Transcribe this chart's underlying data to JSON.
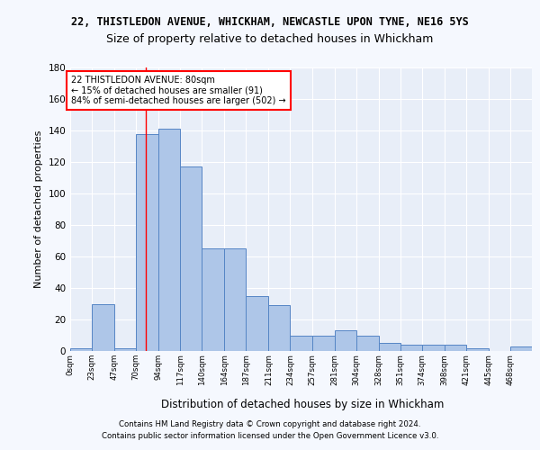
{
  "title_top": "22, THISTLEDON AVENUE, WHICKHAM, NEWCASTLE UPON TYNE, NE16 5YS",
  "title_main": "Size of property relative to detached houses in Whickham",
  "xlabel": "Distribution of detached houses by size in Whickham",
  "ylabel": "Number of detached properties",
  "bar_edges": [
    0,
    23,
    47,
    70,
    94,
    117,
    140,
    164,
    187,
    211,
    234,
    257,
    281,
    304,
    328,
    351,
    374,
    398,
    421,
    445,
    468
  ],
  "bar_heights": [
    2,
    30,
    2,
    138,
    141,
    117,
    65,
    65,
    35,
    29,
    10,
    10,
    13,
    10,
    5,
    4,
    4,
    4,
    2,
    0,
    3
  ],
  "bar_color": "#aec6e8",
  "bar_edge_color": "#5585c5",
  "annotation_text": "22 THISTLEDON AVENUE: 80sqm\n← 15% of detached houses are smaller (91)\n84% of semi-detached houses are larger (502) →",
  "redline_x": 80,
  "ylim": [
    0,
    180
  ],
  "yticks": [
    0,
    20,
    40,
    60,
    80,
    100,
    120,
    140,
    160,
    180
  ],
  "footer_line1": "Contains HM Land Registry data © Crown copyright and database right 2024.",
  "footer_line2": "Contains public sector information licensed under the Open Government Licence v3.0.",
  "background_color": "#e8eef8",
  "fig_background": "#f5f8fe",
  "grid_color": "#ffffff"
}
